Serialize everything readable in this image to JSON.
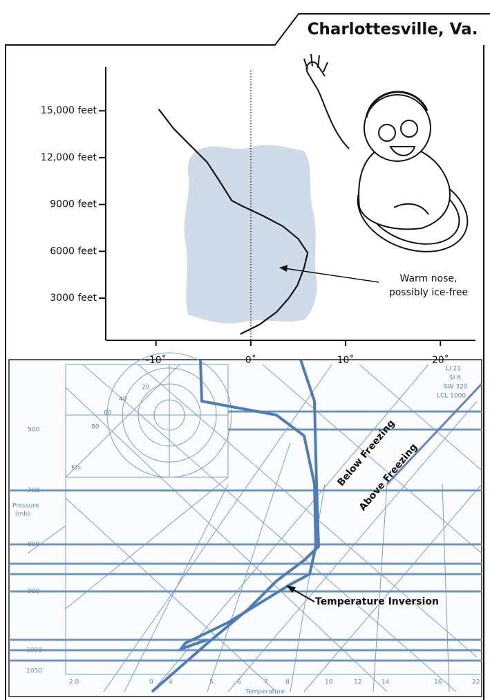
{
  "header": {
    "title": "Charlottesville, Va."
  },
  "chart_data": {
    "type": "line",
    "x": [
      -9.7,
      -8.2,
      -6.4,
      -4.6,
      -3.3,
      -2.0,
      -0.9,
      1.2,
      3.4,
      5.0,
      6.0,
      5.6,
      4.9,
      4.0,
      2.7,
      0.9,
      -1.1
    ],
    "values": [
      15100,
      13900,
      12800,
      11700,
      10500,
      9250,
      8900,
      8300,
      7600,
      6800,
      5900,
      4900,
      3800,
      3000,
      2100,
      1300,
      700
    ],
    "color": "#111111",
    "xlim": [
      -15.3,
      23.7
    ],
    "ylim": [
      300,
      17800
    ],
    "xticks": [
      {
        "value": -10,
        "label": "-10˚"
      },
      {
        "value": 0,
        "label": "0˚"
      },
      {
        "value": 10,
        "label": "10˚"
      },
      {
        "value": 20,
        "label": "20˚"
      }
    ],
    "yticks": [
      {
        "value": 3000,
        "label": "3000 feet"
      },
      {
        "value": 6000,
        "label": "6000 feet"
      },
      {
        "value": 9000,
        "label": "9000 feet"
      },
      {
        "value": 12000,
        "label": "12,000 feet"
      },
      {
        "value": 15000,
        "label": "15,000 feet"
      }
    ],
    "reference_line_x": 0,
    "annotation": [
      "Warm nose,",
      "possibly ice-free"
    ]
  },
  "sounding": {
    "pressure_label": [
      "Pressure",
      "(mb)"
    ],
    "pressure_levels": [
      "500",
      "700",
      "800",
      "900",
      "1000",
      "1050"
    ],
    "temperature_label": "Temperature",
    "temperature_ticks": [
      "2.0",
      "0",
      "4",
      "5",
      "6",
      "7",
      "8",
      "10",
      "12",
      "14",
      "16",
      "22"
    ],
    "indices": [
      "LI 21",
      "SI 6",
      "SW 320",
      "LCL 1000"
    ],
    "wind_rings": [
      "20",
      "40",
      "60",
      "80"
    ],
    "wind_units": "Kts",
    "below_freezing": "Below Freezing",
    "above_freezing": "Above Freezing",
    "inversion": "Temperature Inversion"
  }
}
